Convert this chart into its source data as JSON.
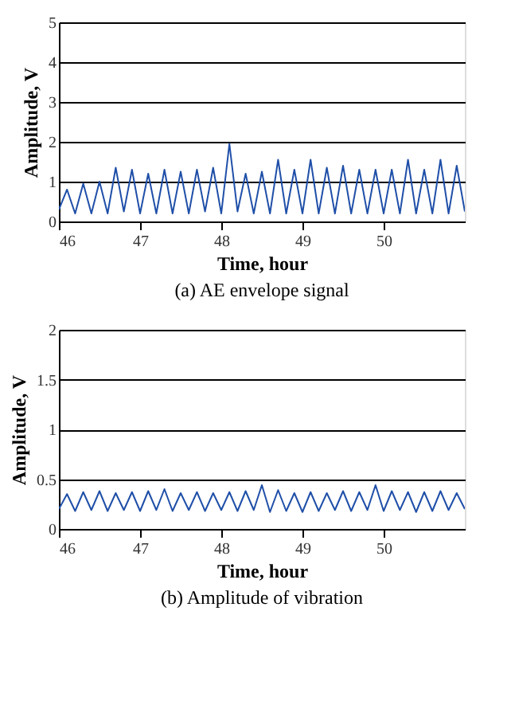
{
  "chart_data": [
    {
      "type": "line",
      "title": "(a) AE envelope signal",
      "xlabel": "Time, hour",
      "ylabel": "Amplitude, V",
      "xlim": [
        46,
        51
      ],
      "xticks": [
        46,
        47,
        48,
        49,
        50
      ],
      "ylim": [
        0,
        5
      ],
      "yticks": [
        0,
        1,
        2,
        3,
        4,
        5
      ],
      "grid": "y",
      "x": [
        46.0,
        46.1,
        46.2,
        46.3,
        46.4,
        46.5,
        46.6,
        46.7,
        46.8,
        46.9,
        47.0,
        47.1,
        47.2,
        47.3,
        47.4,
        47.5,
        47.6,
        47.7,
        47.8,
        47.9,
        48.0,
        48.1,
        48.2,
        48.3,
        48.4,
        48.5,
        48.6,
        48.7,
        48.8,
        48.9,
        49.0,
        49.1,
        49.2,
        49.3,
        49.4,
        49.5,
        49.6,
        49.7,
        49.8,
        49.9,
        50.0,
        50.1,
        50.2,
        50.3,
        50.4,
        50.5,
        50.6,
        50.7,
        50.8,
        50.9,
        51.0
      ],
      "series": [
        {
          "color": "#1f4fa8",
          "values": [
            0.3,
            0.8,
            0.2,
            0.95,
            0.2,
            1.0,
            0.2,
            1.35,
            0.25,
            1.3,
            0.2,
            1.2,
            0.2,
            1.3,
            0.2,
            1.25,
            0.2,
            1.3,
            0.25,
            1.35,
            0.2,
            1.95,
            0.25,
            1.2,
            0.2,
            1.25,
            0.2,
            1.55,
            0.2,
            1.3,
            0.2,
            1.55,
            0.2,
            1.35,
            0.2,
            1.4,
            0.2,
            1.3,
            0.2,
            1.3,
            0.2,
            1.3,
            0.2,
            1.55,
            0.2,
            1.3,
            0.2,
            1.55,
            0.2,
            1.4,
            0.25
          ]
        }
      ]
    },
    {
      "type": "line",
      "title": "(b) Amplitude of vibration",
      "xlabel": "Time, hour",
      "ylabel": "Amplitude, V",
      "xlim": [
        46,
        51
      ],
      "xticks": [
        46,
        47,
        48,
        49,
        50
      ],
      "ylim": [
        0,
        2
      ],
      "yticks": [
        0,
        0.5,
        1,
        1.5,
        2
      ],
      "grid": "y",
      "x": [
        46.0,
        46.1,
        46.2,
        46.3,
        46.4,
        46.5,
        46.6,
        46.7,
        46.8,
        46.9,
        47.0,
        47.1,
        47.2,
        47.3,
        47.4,
        47.5,
        47.6,
        47.7,
        47.8,
        47.9,
        48.0,
        48.1,
        48.2,
        48.3,
        48.4,
        48.5,
        48.6,
        48.7,
        48.8,
        48.9,
        49.0,
        49.1,
        49.2,
        49.3,
        49.4,
        49.5,
        49.6,
        49.7,
        49.8,
        49.9,
        50.0,
        50.1,
        50.2,
        50.3,
        50.4,
        50.5,
        50.6,
        50.7,
        50.8,
        50.9,
        51.0
      ],
      "series": [
        {
          "color": "#1f4fa8",
          "values": [
            0.2,
            0.35,
            0.18,
            0.37,
            0.19,
            0.38,
            0.18,
            0.36,
            0.19,
            0.37,
            0.18,
            0.38,
            0.19,
            0.4,
            0.18,
            0.36,
            0.19,
            0.37,
            0.18,
            0.36,
            0.19,
            0.37,
            0.18,
            0.38,
            0.19,
            0.44,
            0.17,
            0.39,
            0.18,
            0.36,
            0.17,
            0.37,
            0.18,
            0.36,
            0.19,
            0.38,
            0.18,
            0.37,
            0.19,
            0.44,
            0.18,
            0.38,
            0.19,
            0.37,
            0.17,
            0.37,
            0.18,
            0.38,
            0.19,
            0.36,
            0.2
          ]
        }
      ]
    }
  ]
}
